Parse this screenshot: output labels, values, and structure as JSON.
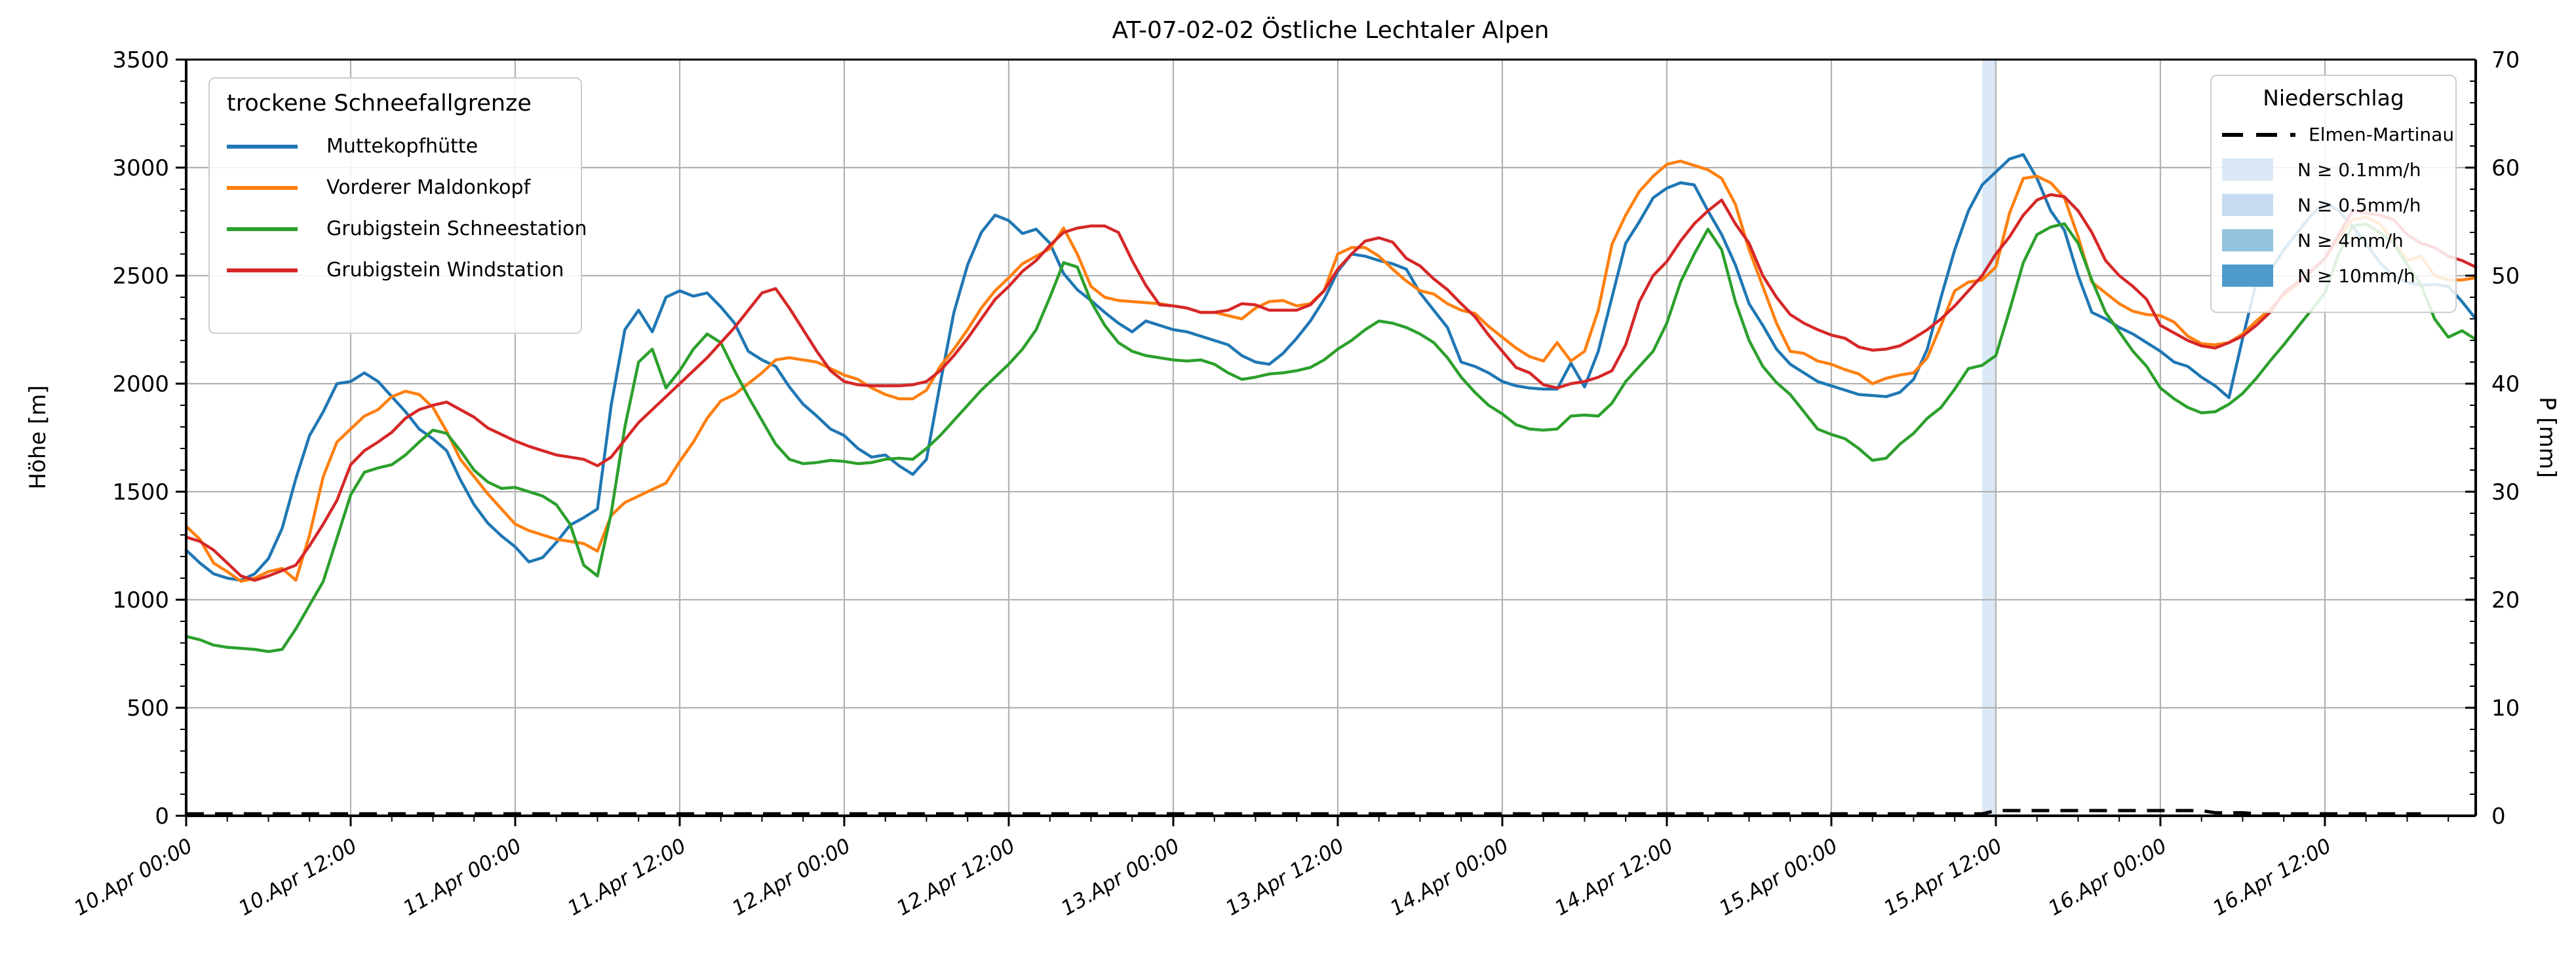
{
  "title": "AT-07-02-02 Östliche Lechtaler Alpen",
  "axes": {
    "y_left_label": "Höhe [m]",
    "y_right_label": "P [mm]",
    "y_left_tick_values": [
      0,
      500,
      1000,
      1500,
      2000,
      2500,
      3000,
      3500
    ],
    "y_right_tick_values": [
      0,
      10,
      20,
      30,
      40,
      50,
      60,
      70
    ],
    "x_tick_labels": [
      "10.Apr 00:00",
      "10.Apr 12:00",
      "11.Apr 00:00",
      "11.Apr 12:00",
      "12.Apr 00:00",
      "12.Apr 12:00",
      "13.Apr 00:00",
      "13.Apr 12:00",
      "14.Apr 00:00",
      "14.Apr 12:00",
      "15.Apr 00:00",
      "15.Apr 12:00",
      "16.Apr 00:00",
      "16.Apr 12:00"
    ]
  },
  "legend_sfg": {
    "title": "trockene Schneefallgrenze",
    "items": [
      {
        "label": "Muttekopfhütte",
        "color": "#1f77b4"
      },
      {
        "label": "Vorderer Maldonkopf",
        "color": "#ff7f0e"
      },
      {
        "label": "Grubigstein Schneestation",
        "color": "#2ca02c"
      },
      {
        "label": "Grubigstein Windstation",
        "color": "#d62728"
      }
    ]
  },
  "legend_precip": {
    "title": "Niederschlag",
    "items": [
      {
        "label": "Elmen-Martinau",
        "style": "dashed-line",
        "color": "#000000"
      },
      {
        "label": "N ≥ 0.1mm/h",
        "color": "#dbe9f6"
      },
      {
        "label": "N ≥ 0.5mm/h",
        "color": "#c6dbef"
      },
      {
        "label": "N ≥ 4mm/h",
        "color": "#93c4de"
      },
      {
        "label": "N ≥ 10mm/h",
        "color": "#4f9bcb"
      }
    ]
  },
  "chart_data": {
    "type": "line",
    "title": "AT-07-02-02 Östliche Lechtaler Alpen",
    "x_start": "10.Apr 00:00",
    "x_end": "16.Apr 23:00",
    "x_step_hours": 1,
    "x_axis_range_hours": 167,
    "grid": true,
    "y_left": {
      "label": "Höhe [m]",
      "min": 0,
      "max": 3500,
      "major_step": 500,
      "minor_step": 100
    },
    "y_right": {
      "label": "P [mm]",
      "min": 0,
      "max": 70,
      "major_step": 10,
      "minor_step": 2
    },
    "series": [
      {
        "id": "muttekopfhuette",
        "name": "Muttekopfhütte",
        "color": "#1f77b4",
        "values": [
          1230,
          1170,
          1120,
          1100,
          1090,
          1120,
          1190,
          1330,
          1560,
          1760,
          1870,
          2000,
          2010,
          2050,
          2010,
          1940,
          1870,
          1790,
          1745,
          1690,
          1555,
          1440,
          1355,
          1295,
          1245,
          1175,
          1195,
          1265,
          1345,
          1380,
          1420,
          1900,
          2250,
          2340,
          2240,
          2400,
          2430,
          2405,
          2420,
          2355,
          2280,
          2150,
          2110,
          2080,
          1985,
          1905,
          1850,
          1790,
          1760,
          1700,
          1660,
          1670,
          1620,
          1580,
          1650,
          2000,
          2330,
          2550,
          2700,
          2780,
          2755,
          2695,
          2715,
          2650,
          2510,
          2435,
          2385,
          2330,
          2280,
          2240,
          2290,
          2270,
          2250,
          2240,
          2220,
          2200,
          2180,
          2130,
          2100,
          2090,
          2140,
          2210,
          2290,
          2390,
          2520,
          2600,
          2590,
          2570,
          2555,
          2530,
          2420,
          2340,
          2260,
          2100,
          2080,
          2050,
          2010,
          1990,
          1980,
          1975,
          1975,
          2095,
          1985,
          2150,
          2400,
          2650,
          2750,
          2860,
          2905,
          2930,
          2920,
          2800,
          2690,
          2550,
          2370,
          2270,
          2160,
          2090,
          2050,
          2010,
          1990,
          1970,
          1950,
          1945,
          1940,
          1960,
          2020,
          2160,
          2400,
          2620,
          2800,
          2920,
          2980,
          3040,
          3060,
          2950,
          2800,
          2710,
          2500,
          2330,
          2300,
          2260,
          2230,
          2190,
          2150,
          2100,
          2080,
          2030,
          1990,
          1935,
          2210,
          2470,
          2520,
          2620,
          2700,
          2780,
          2840,
          2800,
          2730,
          2650,
          2560,
          2500,
          2470,
          2455,
          2460,
          2450,
          2380,
          2300
        ]
      },
      {
        "id": "vorderer-maldonkopf",
        "name": "Vorderer Maldonkopf",
        "color": "#ff7f0e",
        "values": [
          1340,
          1280,
          1170,
          1130,
          1085,
          1100,
          1130,
          1145,
          1090,
          1300,
          1570,
          1730,
          1790,
          1850,
          1880,
          1940,
          1965,
          1950,
          1890,
          1780,
          1650,
          1570,
          1490,
          1420,
          1350,
          1320,
          1300,
          1280,
          1270,
          1260,
          1225,
          1390,
          1450,
          1480,
          1510,
          1540,
          1640,
          1730,
          1840,
          1920,
          1950,
          2000,
          2050,
          2110,
          2120,
          2110,
          2100,
          2070,
          2040,
          2020,
          1980,
          1950,
          1930,
          1930,
          1970,
          2080,
          2160,
          2250,
          2350,
          2430,
          2490,
          2555,
          2590,
          2625,
          2720,
          2600,
          2450,
          2400,
          2385,
          2380,
          2375,
          2370,
          2360,
          2350,
          2330,
          2330,
          2315,
          2300,
          2350,
          2380,
          2385,
          2360,
          2370,
          2430,
          2600,
          2630,
          2630,
          2590,
          2530,
          2475,
          2430,
          2415,
          2370,
          2340,
          2325,
          2265,
          2215,
          2165,
          2125,
          2105,
          2190,
          2105,
          2150,
          2340,
          2645,
          2780,
          2890,
          2960,
          3015,
          3030,
          3010,
          2990,
          2950,
          2830,
          2620,
          2450,
          2280,
          2150,
          2140,
          2105,
          2090,
          2065,
          2045,
          2000,
          2025,
          2040,
          2050,
          2120,
          2270,
          2430,
          2470,
          2480,
          2540,
          2790,
          2950,
          2960,
          2930,
          2860,
          2680,
          2470,
          2420,
          2370,
          2335,
          2320,
          2315,
          2285,
          2220,
          2185,
          2180,
          2190,
          2230,
          2290,
          2345,
          2410,
          2460,
          2520,
          2580,
          2670,
          2760,
          2770,
          2740,
          2660,
          2570,
          2590,
          2500,
          2480,
          2480,
          2490
        ]
      },
      {
        "id": "grubigstein-schneestation",
        "name": "Grubigstein Schneestation",
        "color": "#2ca02c",
        "values": [
          830,
          815,
          790,
          780,
          775,
          770,
          760,
          770,
          865,
          975,
          1085,
          1285,
          1485,
          1590,
          1610,
          1625,
          1670,
          1730,
          1785,
          1770,
          1690,
          1600,
          1545,
          1515,
          1520,
          1500,
          1480,
          1440,
          1350,
          1160,
          1110,
          1400,
          1800,
          2100,
          2160,
          1980,
          2060,
          2160,
          2230,
          2190,
          2060,
          1940,
          1830,
          1720,
          1650,
          1630,
          1635,
          1645,
          1640,
          1630,
          1635,
          1650,
          1655,
          1650,
          1700,
          1760,
          1830,
          1900,
          1970,
          2030,
          2090,
          2160,
          2250,
          2400,
          2560,
          2540,
          2380,
          2270,
          2190,
          2150,
          2130,
          2120,
          2110,
          2105,
          2110,
          2090,
          2050,
          2020,
          2030,
          2045,
          2050,
          2060,
          2075,
          2110,
          2160,
          2200,
          2250,
          2290,
          2280,
          2260,
          2230,
          2190,
          2120,
          2030,
          1960,
          1900,
          1860,
          1810,
          1790,
          1785,
          1790,
          1850,
          1855,
          1850,
          1910,
          2010,
          2080,
          2150,
          2280,
          2470,
          2600,
          2715,
          2620,
          2380,
          2200,
          2080,
          2005,
          1950,
          1870,
          1790,
          1765,
          1745,
          1700,
          1645,
          1655,
          1720,
          1770,
          1840,
          1890,
          1975,
          2070,
          2085,
          2130,
          2340,
          2560,
          2690,
          2725,
          2740,
          2650,
          2480,
          2330,
          2240,
          2150,
          2080,
          1980,
          1930,
          1890,
          1865,
          1870,
          1905,
          1955,
          2025,
          2105,
          2180,
          2260,
          2340,
          2420,
          2600,
          2730,
          2740,
          2700,
          2650,
          2550,
          2460,
          2300,
          2215,
          2245,
          2205
        ]
      },
      {
        "id": "grubigstein-windstation",
        "name": "Grubigstein Windstation",
        "color": "#d62728",
        "values": [
          1290,
          1270,
          1230,
          1170,
          1110,
          1090,
          1110,
          1135,
          1160,
          1250,
          1350,
          1460,
          1625,
          1690,
          1730,
          1775,
          1840,
          1880,
          1900,
          1915,
          1880,
          1845,
          1795,
          1765,
          1735,
          1710,
          1690,
          1670,
          1660,
          1650,
          1620,
          1660,
          1740,
          1820,
          1880,
          1940,
          2000,
          2060,
          2120,
          2190,
          2260,
          2340,
          2420,
          2440,
          2350,
          2250,
          2150,
          2060,
          2010,
          1995,
          1990,
          1990,
          1990,
          1995,
          2010,
          2060,
          2130,
          2210,
          2300,
          2390,
          2450,
          2520,
          2570,
          2640,
          2700,
          2720,
          2730,
          2730,
          2700,
          2570,
          2455,
          2365,
          2360,
          2350,
          2330,
          2330,
          2340,
          2370,
          2365,
          2340,
          2340,
          2340,
          2365,
          2430,
          2530,
          2600,
          2660,
          2675,
          2655,
          2580,
          2545,
          2485,
          2435,
          2370,
          2310,
          2225,
          2150,
          2075,
          2050,
          1995,
          1980,
          2000,
          2010,
          2030,
          2060,
          2180,
          2380,
          2500,
          2565,
          2660,
          2740,
          2800,
          2850,
          2740,
          2650,
          2500,
          2400,
          2320,
          2280,
          2250,
          2225,
          2210,
          2170,
          2155,
          2160,
          2175,
          2210,
          2250,
          2300,
          2360,
          2430,
          2500,
          2600,
          2680,
          2780,
          2850,
          2875,
          2865,
          2800,
          2700,
          2570,
          2500,
          2450,
          2390,
          2270,
          2235,
          2200,
          2175,
          2165,
          2190,
          2220,
          2270,
          2330,
          2420,
          2470,
          2520,
          2580,
          2690,
          2800,
          2790,
          2780,
          2760,
          2690,
          2650,
          2630,
          2590,
          2570,
          2540
        ]
      }
    ],
    "precip_line": {
      "id": "elmen-martinau",
      "name": "Elmen-Martinau",
      "color": "#000000",
      "style": "dashed",
      "unit": "mm/h",
      "values": [
        0,
        0,
        0,
        0,
        0,
        0,
        0,
        0,
        0,
        0,
        0,
        0,
        0,
        0,
        0,
        0,
        0,
        0,
        0,
        0,
        0,
        0,
        0,
        0,
        0,
        0,
        0,
        0,
        0,
        0,
        0,
        0,
        0,
        0,
        0,
        0,
        0,
        0,
        0,
        0,
        0,
        0,
        0,
        0,
        0,
        0,
        0,
        0,
        0,
        0,
        0,
        0,
        0,
        0,
        0,
        0,
        0,
        0,
        0,
        0,
        0,
        0,
        0,
        0,
        0,
        0,
        0,
        0,
        0,
        0,
        0,
        0,
        0,
        0,
        0,
        0,
        0,
        0,
        0,
        0,
        0,
        0,
        0,
        0,
        0,
        0,
        0,
        0,
        0,
        0,
        0,
        0,
        0,
        0,
        0,
        0,
        0,
        0,
        0,
        0,
        0,
        0,
        0,
        0,
        0,
        0,
        0,
        0,
        0,
        0,
        0,
        0,
        0,
        0,
        0,
        0,
        0,
        0,
        0,
        0,
        0,
        0,
        0,
        0,
        0,
        0,
        0,
        0,
        0,
        0,
        0,
        0,
        0.3,
        0.3,
        0.3,
        0.3,
        0.3,
        0.3,
        0.3,
        0.3,
        0.3,
        0.3,
        0.3,
        0.3,
        0.3,
        0.3,
        0.3,
        0.3,
        0.1,
        0.1,
        0.1,
        0,
        0,
        0,
        0,
        0,
        0,
        0,
        0,
        0,
        0,
        0,
        0,
        0
      ]
    },
    "precip_bands": [
      {
        "start": "15.Apr 11:00",
        "end": "15.Apr 12:00",
        "start_hour": 131,
        "end_hour": 132,
        "category": "N ≥ 0.1mm/h",
        "color": "#dbe9f6"
      }
    ]
  }
}
